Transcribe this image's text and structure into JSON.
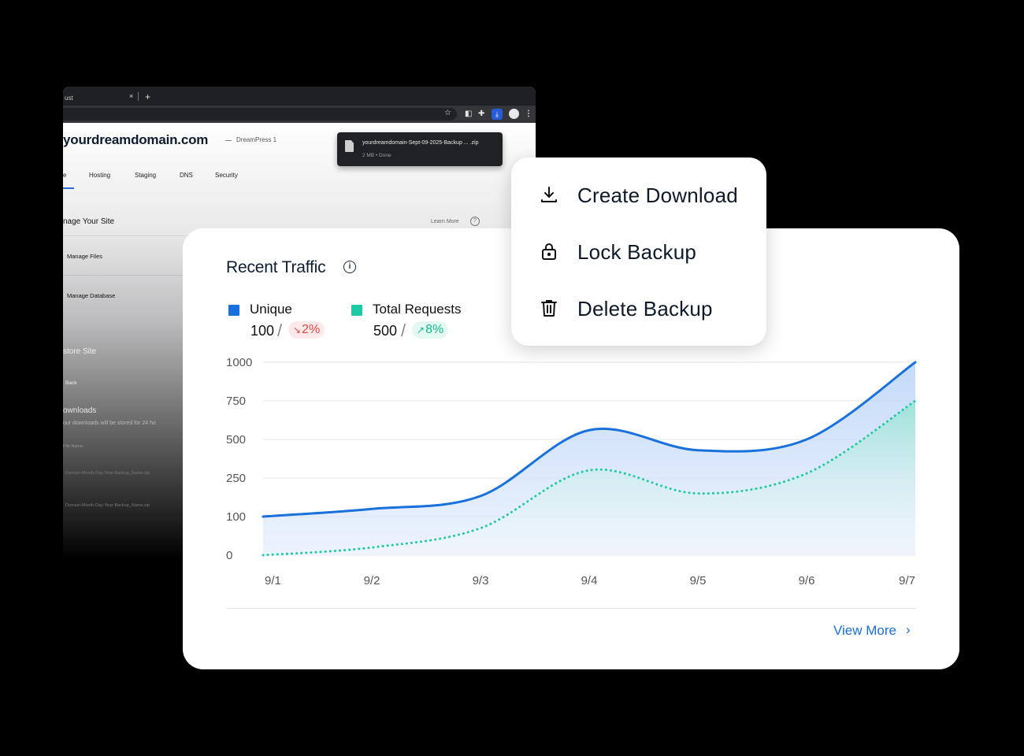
{
  "browser": {
    "tab_label": "ust",
    "tab_close": "×",
    "tab_new": "+",
    "site_title": "yourdreamdomain.com",
    "site_subtitle": "DreamPress 1",
    "download_popup": {
      "filename": "yourdreamdomain-Sept-09-2025-Backup ... .zip",
      "status": "2 MB • Done"
    },
    "tabs": [
      "e",
      "Hosting",
      "Staging",
      "DNS",
      "Security"
    ],
    "manage_heading": "nage Your Site",
    "learn_more": "Learn More",
    "manage_files": "Manage Files",
    "manage_database": "Manage Database",
    "restore_heading": "store Site",
    "back_link": "Back",
    "downloads_heading": "ownloads",
    "downloads_note": "our downloads will be stored for 24 ho",
    "file_name_column": "File Name",
    "file_rows": [
      "Domain-Month-Day-Year-Backup_Name.zip",
      "Domain-Month-Day-Year-Backup_Name.zip"
    ]
  },
  "traffic_card": {
    "title": "Recent Traffic",
    "legend": {
      "unique": {
        "label": "Unique",
        "value": "100",
        "change": "2%",
        "direction": "down",
        "color": "#1871dc"
      },
      "total": {
        "label": "Total Requests",
        "value": "500",
        "change": "8%",
        "direction": "up",
        "color": "#1fc9a3"
      }
    },
    "view_more": "View More"
  },
  "actions_menu": {
    "items": [
      {
        "label": "Create Download",
        "icon": "download-icon"
      },
      {
        "label": "Lock Backup",
        "icon": "lock-icon"
      },
      {
        "label": "Delete Backup",
        "icon": "trash-icon"
      }
    ]
  },
  "chart_data": {
    "type": "area",
    "title": "Recent Traffic",
    "categories": [
      "9/1",
      "9/2",
      "9/3",
      "9/4",
      "9/5",
      "9/6",
      "9/7"
    ],
    "y_ticks": [
      0,
      100,
      250,
      500,
      750,
      1000
    ],
    "ylim": [
      0,
      1000
    ],
    "grid": true,
    "series": [
      {
        "name": "Unique",
        "style": "solid",
        "color": "#1871dc",
        "values": [
          100,
          130,
          180,
          560,
          430,
          500,
          1000
        ]
      },
      {
        "name": "Total Requests",
        "style": "dotted",
        "color": "#1fc9a3",
        "values": [
          0,
          20,
          70,
          300,
          190,
          280,
          750
        ]
      }
    ]
  }
}
